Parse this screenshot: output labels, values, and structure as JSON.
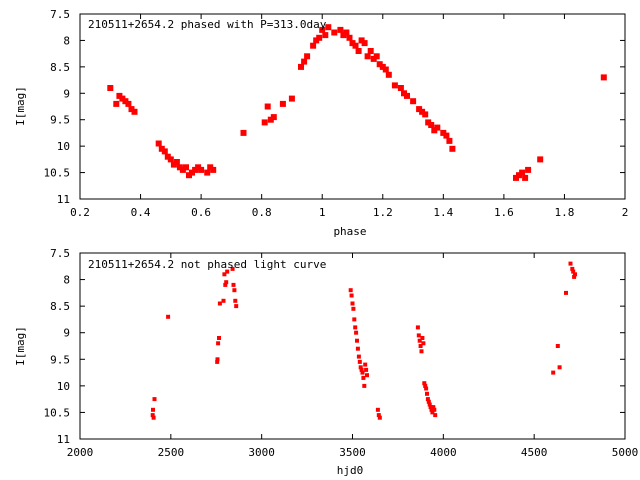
{
  "chart_data": [
    {
      "type": "scatter",
      "title": "210511+2654.2 phased with P=313.0day",
      "xlabel": "phase",
      "ylabel": "I[mag]",
      "xlim": [
        0.2,
        2.0
      ],
      "ylim": [
        11,
        7.5
      ],
      "y_inverted": true,
      "grid": false,
      "x_ticks": [
        "0.2",
        "0.4",
        "0.6",
        "0.8",
        "1",
        "1.2",
        "1.4",
        "1.6",
        "1.8",
        "2"
      ],
      "y_ticks": [
        "7.5",
        "8",
        "8.5",
        "9",
        "9.5",
        "10",
        "10.5",
        "11"
      ],
      "marker_color": "#ff0000",
      "series": [
        {
          "x": [
            0.3,
            0.32,
            0.33,
            0.34,
            0.35,
            0.36,
            0.37,
            0.38,
            0.46,
            0.47,
            0.48,
            0.49,
            0.5,
            0.51,
            0.52,
            0.53,
            0.54,
            0.55,
            0.56,
            0.57,
            0.58,
            0.59,
            0.6,
            0.62,
            0.63,
            0.64,
            0.74,
            0.81,
            0.82,
            0.83,
            0.84,
            0.87,
            0.9,
            0.93,
            0.94,
            0.95,
            0.97,
            0.98,
            0.99,
            1.0,
            1.01,
            1.02,
            1.04,
            1.06,
            1.07,
            1.08,
            1.09,
            1.1,
            1.11,
            1.12,
            1.13,
            1.14,
            1.15,
            1.16,
            1.17,
            1.18,
            1.19,
            1.2,
            1.21,
            1.22,
            1.24,
            1.26,
            1.27,
            1.28,
            1.3,
            1.32,
            1.33,
            1.34,
            1.35,
            1.36,
            1.37,
            1.38,
            1.4,
            1.41,
            1.42,
            1.43,
            1.64,
            1.65,
            1.66,
            1.67,
            1.68,
            1.72,
            1.93
          ],
          "y": [
            8.9,
            9.2,
            9.05,
            9.1,
            9.15,
            9.2,
            9.3,
            9.35,
            9.95,
            10.05,
            10.1,
            10.2,
            10.25,
            10.35,
            10.3,
            10.4,
            10.45,
            10.4,
            10.55,
            10.5,
            10.45,
            10.4,
            10.45,
            10.5,
            10.4,
            10.45,
            9.75,
            9.55,
            9.25,
            9.5,
            9.45,
            9.2,
            9.1,
            8.5,
            8.4,
            8.3,
            8.1,
            8.0,
            7.95,
            7.8,
            7.9,
            7.75,
            7.85,
            7.8,
            7.9,
            7.85,
            7.95,
            8.05,
            8.1,
            8.2,
            8.0,
            8.05,
            8.3,
            8.2,
            8.35,
            8.3,
            8.45,
            8.5,
            8.55,
            8.65,
            8.85,
            8.9,
            9.0,
            9.05,
            9.15,
            9.3,
            9.35,
            9.4,
            9.55,
            9.6,
            9.7,
            9.65,
            9.75,
            9.8,
            9.9,
            10.05,
            10.6,
            10.55,
            10.5,
            10.6,
            10.45,
            10.25,
            8.7
          ]
        }
      ]
    },
    {
      "type": "scatter",
      "title": "210511+2654.2 not phased light curve",
      "xlabel": "hjd0",
      "ylabel": "I[mag]",
      "xlim": [
        2000,
        5000
      ],
      "ylim": [
        11,
        7.5
      ],
      "y_inverted": true,
      "grid": false,
      "x_ticks": [
        "2000",
        "2500",
        "3000",
        "3500",
        "4000",
        "4500",
        "5000"
      ],
      "y_ticks": [
        "7.5",
        "8",
        "8.5",
        "9",
        "9.5",
        "10",
        "10.5",
        "11"
      ],
      "marker_color": "#ff0000",
      "series": [
        {
          "x": [
            2400,
            2402,
            2405,
            2410,
            2485,
            2755,
            2757,
            2760,
            2765,
            2770,
            2790,
            2795,
            2800,
            2805,
            2810,
            2840,
            2845,
            2850,
            2855,
            2860,
            3490,
            3495,
            3500,
            3505,
            3510,
            3515,
            3520,
            3525,
            3530,
            3535,
            3540,
            3545,
            3550,
            3555,
            3560,
            3565,
            3570,
            3575,
            3580,
            3640,
            3645,
            3650,
            3860,
            3865,
            3870,
            3875,
            3880,
            3885,
            3890,
            3895,
            3900,
            3905,
            3910,
            3915,
            3920,
            3925,
            3930,
            3935,
            3940,
            3945,
            3950,
            3955,
            4605,
            4630,
            4640,
            4675,
            4700,
            4710,
            4715,
            4720,
            4725
          ],
          "y": [
            10.55,
            10.45,
            10.6,
            10.25,
            8.7,
            9.55,
            9.5,
            9.2,
            9.1,
            8.45,
            8.4,
            7.9,
            8.1,
            8.05,
            7.85,
            7.8,
            8.1,
            8.2,
            8.4,
            8.5,
            8.2,
            8.3,
            8.45,
            8.55,
            8.75,
            8.9,
            9.0,
            9.15,
            9.3,
            9.45,
            9.55,
            9.65,
            9.7,
            9.75,
            9.85,
            10.0,
            9.6,
            9.7,
            9.8,
            10.45,
            10.55,
            10.6,
            8.9,
            9.05,
            9.15,
            9.25,
            9.35,
            9.1,
            9.2,
            9.95,
            10.0,
            10.05,
            10.15,
            10.25,
            10.3,
            10.35,
            10.4,
            10.45,
            10.5,
            10.4,
            10.45,
            10.55,
            9.75,
            9.25,
            9.65,
            8.25,
            7.7,
            7.8,
            7.85,
            7.95,
            7.9
          ]
        }
      ]
    }
  ]
}
